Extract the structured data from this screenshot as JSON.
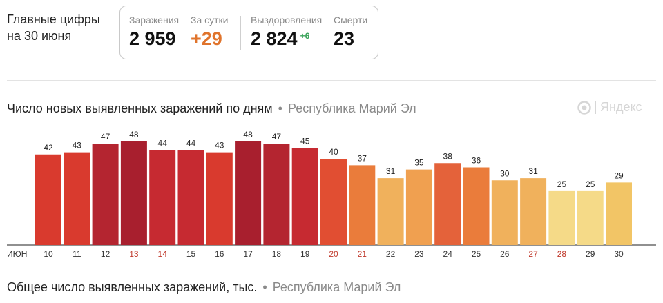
{
  "header": {
    "title_line1": "Главные цифры",
    "title_line2": "на 30 июня"
  },
  "stats": {
    "infections_label": "Заражения",
    "infections_value": "2 959",
    "daily_label": "За сутки",
    "daily_value": "+29",
    "recovered_label": "Выздоровления",
    "recovered_value": "2 824",
    "recovered_delta": "+6",
    "deaths_label": "Смерти",
    "deaths_value": "23",
    "daily_color": "#e0742c",
    "recovered_delta_color": "#3aa35a"
  },
  "chart_section": {
    "title": "Число новых выявленных заражений по дням",
    "separator": "•",
    "region": "Республика Марий Эл",
    "brand": "Яндекс"
  },
  "chart_data": {
    "type": "bar",
    "title": "Число новых выявленных заражений по дням",
    "subtitle": "Республика Марий Эл",
    "xlabel": "",
    "ylabel": "",
    "month_label": "ИЮН",
    "categories": [
      "10",
      "11",
      "12",
      "13",
      "14",
      "15",
      "16",
      "17",
      "18",
      "19",
      "20",
      "21",
      "22",
      "23",
      "24",
      "25",
      "26",
      "27",
      "28",
      "29",
      "30"
    ],
    "values": [
      42,
      43,
      47,
      48,
      44,
      44,
      43,
      48,
      47,
      45,
      40,
      37,
      31,
      35,
      38,
      36,
      30,
      31,
      25,
      25,
      29
    ],
    "weekend_days": [
      "13",
      "14",
      "20",
      "21",
      "27",
      "28"
    ],
    "ylim": [
      0,
      48
    ],
    "grid": false,
    "colors": [
      "#d93a2e",
      "#d93a2e",
      "#b42530",
      "#a81f2e",
      "#c62a31",
      "#c62a31",
      "#d93a2e",
      "#a81f2e",
      "#b42530",
      "#c62a31",
      "#e14e32",
      "#ea7c3b",
      "#f0b15c",
      "#f0a050",
      "#e4623a",
      "#ea7c3b",
      "#f0b15c",
      "#f0b15c",
      "#f5da88",
      "#f5da88",
      "#f2c566"
    ],
    "label_color": "#222222",
    "weekend_label_color": "#c0392b",
    "axis_color": "#222222"
  },
  "bottom_section": {
    "title": "Общее число выявленных заражений, тыс.",
    "separator": "•",
    "region": "Республика Марий Эл"
  }
}
